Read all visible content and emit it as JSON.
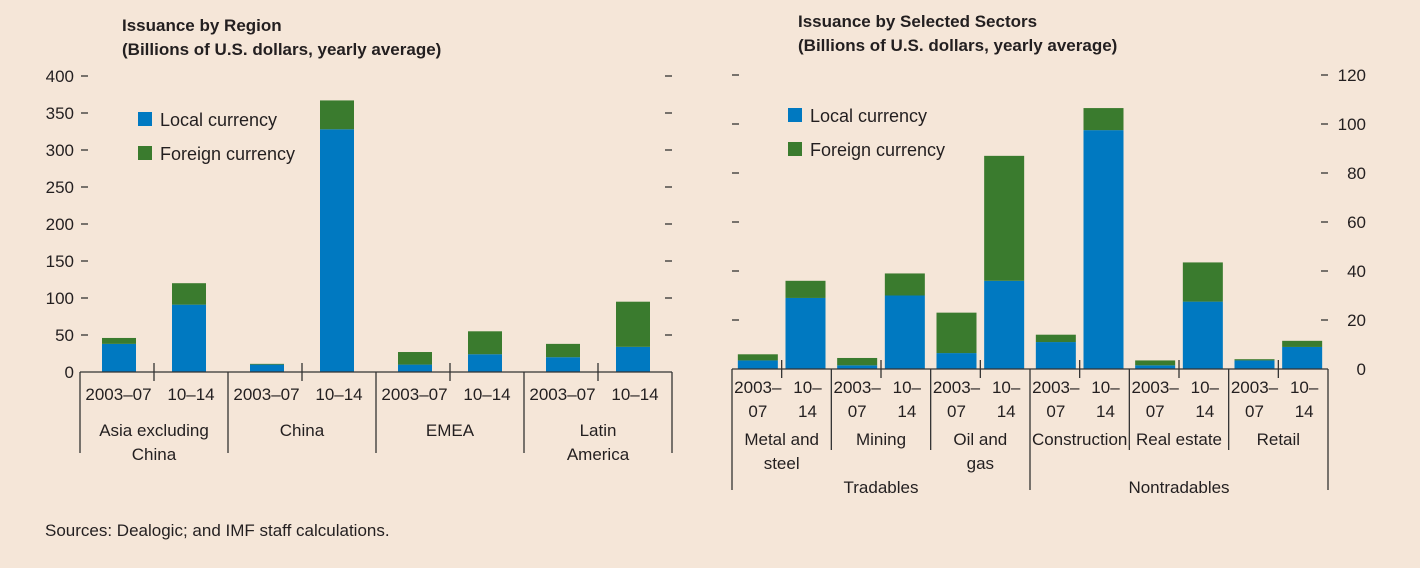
{
  "colors": {
    "local": "#0079c1",
    "foreign": "#3a7b2e",
    "axis": "#333333",
    "background": "#f5e6d8"
  },
  "legend": {
    "local": "Local currency",
    "foreign": "Foreign currency"
  },
  "source": "Sources: Dealogic; and IMF staff calculations.",
  "chart_data": [
    {
      "type": "bar",
      "stacked": true,
      "title": "Issuance by Region",
      "subtitle": "(Billions of U.S. dollars, yearly average)",
      "ylim": [
        0,
        400
      ],
      "yticks": [
        0,
        50,
        100,
        150,
        200,
        250,
        300,
        350,
        400
      ],
      "y_axis_side": "left",
      "legend_position": "top-left",
      "groups": [
        {
          "label": [
            "Asia excluding",
            "China"
          ],
          "periods": [
            "2003–07",
            "10–14"
          ]
        },
        {
          "label": [
            "China"
          ],
          "periods": [
            "2003–07",
            "10–14"
          ]
        },
        {
          "label": [
            "EMEA"
          ],
          "periods": [
            "2003–07",
            "10–14"
          ]
        },
        {
          "label": [
            "Latin",
            "America"
          ],
          "periods": [
            "2003–07",
            "10–14"
          ]
        }
      ],
      "categories": [
        "Asia excluding China 2003–07",
        "Asia excluding China 10–14",
        "China 2003–07",
        "China 10–14",
        "EMEA 2003–07",
        "EMEA 10–14",
        "Latin America 2003–07",
        "Latin America 10–14"
      ],
      "series": [
        {
          "name": "Local currency",
          "values": [
            38,
            91,
            10,
            328,
            10,
            24,
            20,
            34
          ]
        },
        {
          "name": "Foreign currency",
          "values": [
            8,
            29,
            1,
            39,
            17,
            31,
            18,
            61
          ]
        }
      ]
    },
    {
      "type": "bar",
      "stacked": true,
      "title": "Issuance by Selected Sectors",
      "subtitle": "(Billions of U.S. dollars, yearly average)",
      "ylim": [
        0,
        120
      ],
      "yticks": [
        0,
        20,
        40,
        60,
        80,
        100,
        120
      ],
      "y_axis_side": "right",
      "legend_position": "top-left",
      "groups": [
        {
          "label": [
            "Metal and",
            "steel"
          ],
          "periods": [
            [
              "2003–",
              "07"
            ],
            [
              "10–",
              "14"
            ]
          ]
        },
        {
          "label": [
            "Mining"
          ],
          "periods": [
            [
              "2003–",
              "07"
            ],
            [
              "10–",
              "14"
            ]
          ]
        },
        {
          "label": [
            "Oil and",
            "gas"
          ],
          "periods": [
            [
              "2003–",
              "07"
            ],
            [
              "10–",
              "14"
            ]
          ]
        },
        {
          "label": [
            "Construction"
          ],
          "periods": [
            [
              "2003–",
              "07"
            ],
            [
              "10–",
              "14"
            ]
          ]
        },
        {
          "label": [
            "Real estate"
          ],
          "periods": [
            [
              "2003–",
              "07"
            ],
            [
              "10–",
              "14"
            ]
          ]
        },
        {
          "label": [
            "Retail"
          ],
          "periods": [
            [
              "2003–",
              "07"
            ],
            [
              "10–",
              "14"
            ]
          ]
        }
      ],
      "supergroups": [
        {
          "label": "Tradables",
          "span": [
            0,
            2
          ]
        },
        {
          "label": "Nontradables",
          "span": [
            3,
            5
          ]
        }
      ],
      "categories": [
        "Metal and steel 2003–07",
        "Metal and steel 10–14",
        "Mining 2003–07",
        "Mining 10–14",
        "Oil and gas 2003–07",
        "Oil and gas 10–14",
        "Construction 2003–07",
        "Construction 10–14",
        "Real estate 2003–07",
        "Real estate 10–14",
        "Retail 2003–07",
        "Retail 10–14"
      ],
      "series": [
        {
          "name": "Local currency",
          "values": [
            3.5,
            29,
            1.5,
            30,
            6.5,
            36,
            11,
            97.5,
            1.5,
            27.5,
            3.5,
            9
          ]
        },
        {
          "name": "Foreign currency",
          "values": [
            2.5,
            7,
            3,
            9,
            16.5,
            51,
            3,
            9,
            2,
            16,
            0.5,
            2.5
          ]
        }
      ]
    }
  ]
}
